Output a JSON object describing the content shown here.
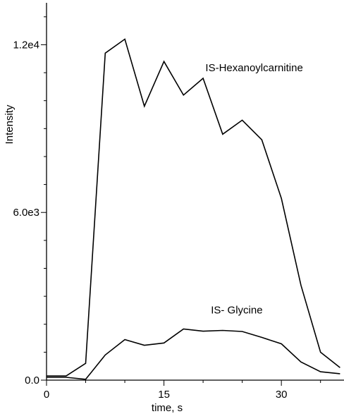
{
  "chart_data": {
    "type": "line",
    "title": "",
    "xlabel": "time, s",
    "ylabel": "Intensity",
    "xlim": [
      0,
      38
    ],
    "ylim": [
      0,
      13500
    ],
    "x_ticks": [
      0,
      15,
      30
    ],
    "x_tick_labels": [
      "0",
      "15",
      "30"
    ],
    "y_ticks": [
      0,
      6000,
      12000
    ],
    "y_tick_labels": [
      "0.0",
      "6.0e3",
      "1.2e4"
    ],
    "y_minor_step": 1000,
    "x_minor_step": 5,
    "grid": false,
    "legend": "none",
    "series": [
      {
        "name": "IS-Hexanoylcarnitine",
        "x": [
          0,
          2.5,
          5,
          7.5,
          10,
          12.5,
          15,
          17.5,
          20,
          22.5,
          25,
          27.5,
          30,
          32.5,
          35,
          37.5
        ],
        "y": [
          150,
          150,
          600,
          11700,
          12200,
          9800,
          11400,
          10200,
          10800,
          8800,
          9300,
          8600,
          6500,
          3400,
          1000,
          450
        ]
      },
      {
        "name": "IS- Glycine",
        "x": [
          0,
          2.5,
          5,
          7.5,
          10,
          12.5,
          15,
          17.5,
          20,
          22.5,
          25,
          27.5,
          30,
          32.5,
          35,
          37.5
        ],
        "y": [
          100,
          100,
          30,
          900,
          1450,
          1250,
          1330,
          1830,
          1750,
          1780,
          1740,
          1530,
          1300,
          650,
          300,
          230
        ]
      }
    ],
    "annotations": [
      {
        "text": "IS-Hexanoylcarnitine",
        "x": 20.3,
        "y": 11050
      },
      {
        "text": "IS- Glycine",
        "x": 21,
        "y": 2380
      }
    ]
  }
}
